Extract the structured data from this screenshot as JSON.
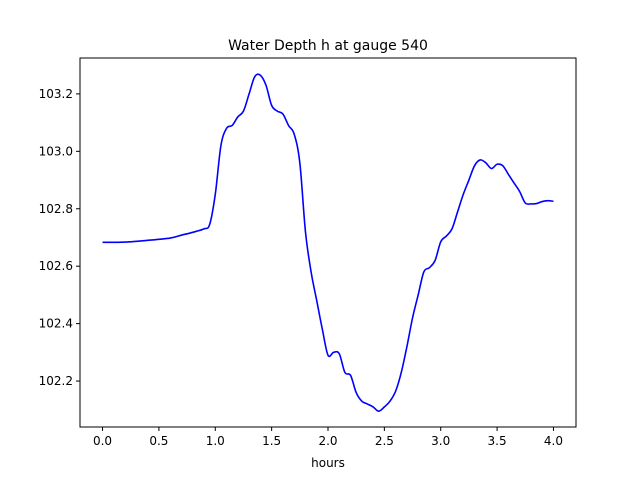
{
  "chart_data": {
    "type": "line",
    "title": "Water Depth h at gauge 540",
    "xlabel": "hours",
    "ylabel": "",
    "xlim": [
      -0.2,
      4.2
    ],
    "ylim": [
      102.04,
      103.325
    ],
    "xticks": [
      0.0,
      0.5,
      1.0,
      1.5,
      2.0,
      2.5,
      3.0,
      3.5,
      4.0
    ],
    "xtick_labels": [
      "0.0",
      "0.5",
      "1.0",
      "1.5",
      "2.0",
      "2.5",
      "3.0",
      "3.5",
      "4.0"
    ],
    "yticks": [
      102.2,
      102.4,
      102.6,
      102.8,
      103.0,
      103.2
    ],
    "ytick_labels": [
      "102.2",
      "102.4",
      "102.6",
      "102.8",
      "103.0",
      "103.2"
    ],
    "grid": false,
    "series": [
      {
        "color": "#0000ff",
        "x": [
          0.0,
          0.2,
          0.4,
          0.6,
          0.7,
          0.8,
          0.9,
          0.95,
          1.0,
          1.05,
          1.1,
          1.15,
          1.2,
          1.25,
          1.3,
          1.35,
          1.4,
          1.45,
          1.5,
          1.55,
          1.6,
          1.65,
          1.7,
          1.75,
          1.8,
          1.85,
          1.9,
          1.95,
          2.0,
          2.05,
          2.1,
          2.15,
          2.2,
          2.25,
          2.3,
          2.35,
          2.4,
          2.45,
          2.5,
          2.55,
          2.6,
          2.65,
          2.7,
          2.75,
          2.8,
          2.85,
          2.9,
          2.95,
          3.0,
          3.05,
          3.1,
          3.15,
          3.2,
          3.25,
          3.3,
          3.35,
          3.4,
          3.45,
          3.5,
          3.55,
          3.6,
          3.65,
          3.7,
          3.75,
          3.8,
          3.85,
          3.9,
          3.95,
          4.0
        ],
        "y": [
          102.683,
          102.684,
          102.69,
          102.698,
          102.708,
          102.718,
          102.73,
          102.745,
          102.85,
          103.02,
          103.08,
          103.09,
          103.12,
          103.14,
          103.2,
          103.26,
          103.265,
          103.23,
          103.16,
          103.14,
          103.13,
          103.09,
          103.06,
          102.96,
          102.72,
          102.58,
          102.48,
          102.38,
          102.29,
          102.3,
          102.295,
          102.23,
          102.22,
          102.16,
          102.13,
          102.12,
          102.11,
          102.095,
          102.11,
          102.13,
          102.165,
          102.23,
          102.32,
          102.42,
          102.5,
          102.58,
          102.595,
          102.62,
          102.685,
          102.705,
          102.73,
          102.79,
          102.85,
          102.9,
          102.95,
          102.97,
          102.96,
          102.94,
          102.955,
          102.95,
          102.92,
          102.89,
          102.86,
          102.82,
          102.817,
          102.818,
          102.825,
          102.828,
          102.826
        ]
      }
    ]
  }
}
